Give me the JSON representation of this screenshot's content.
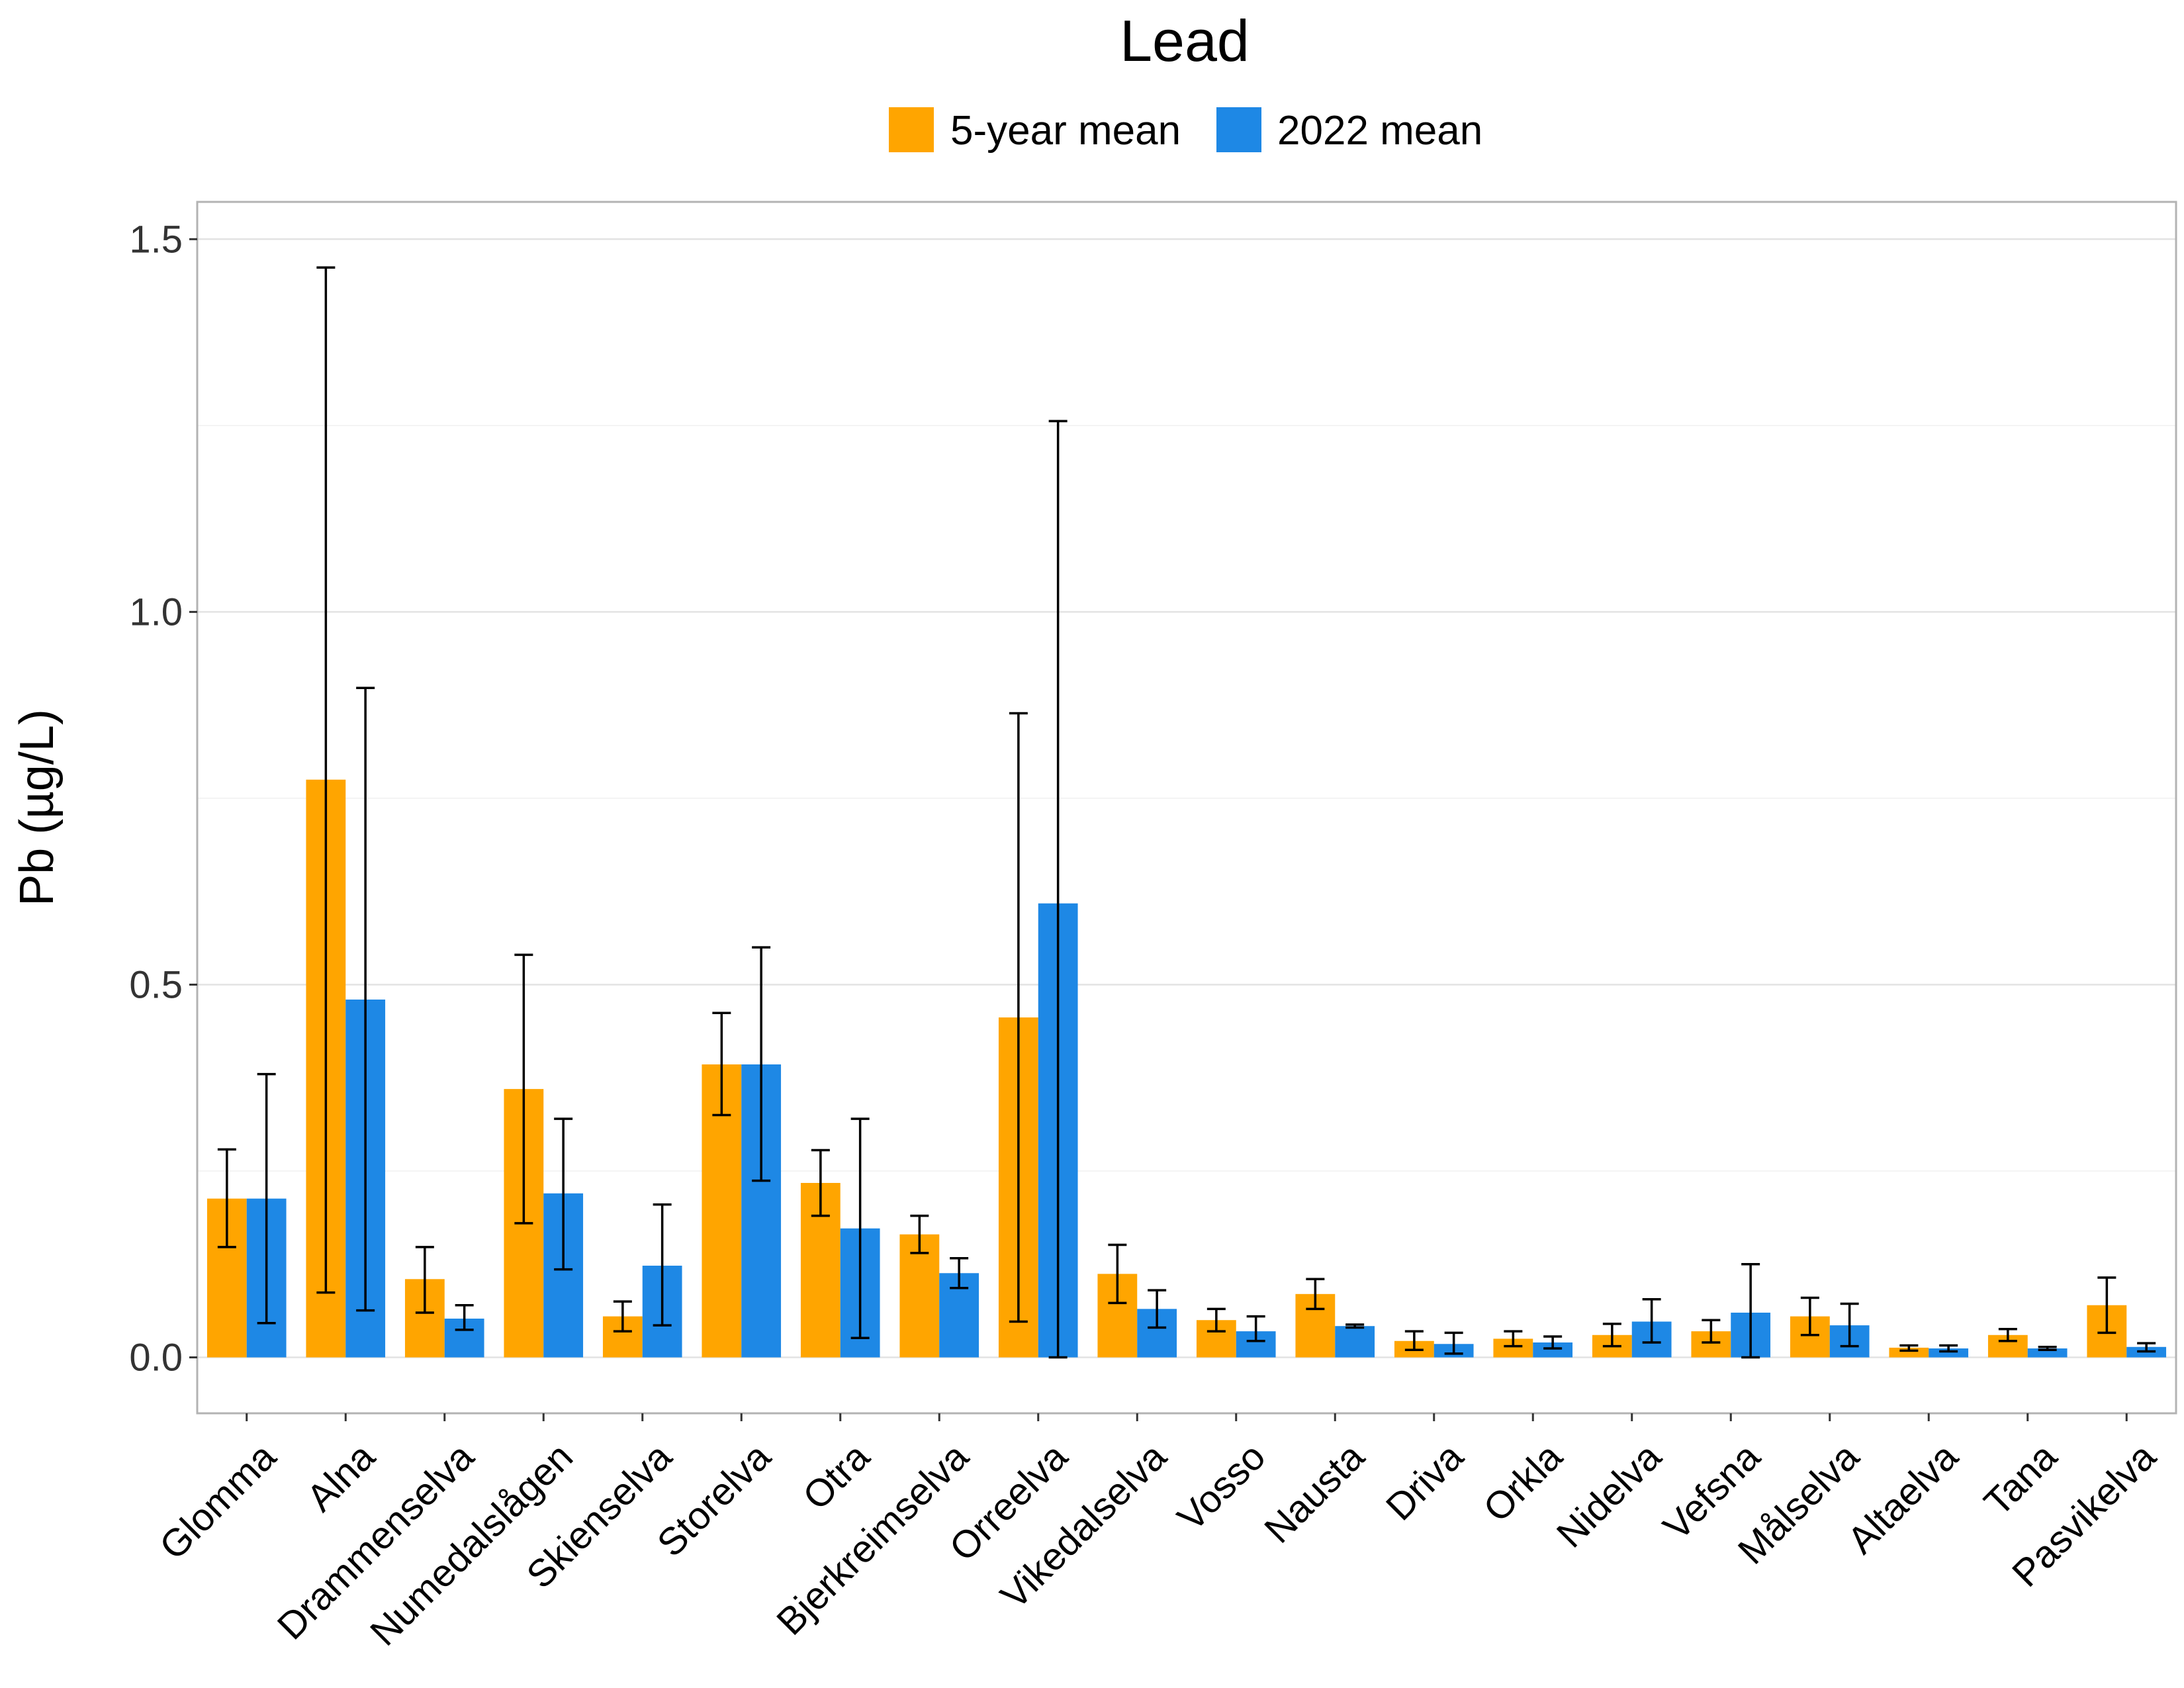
{
  "chart_data": {
    "type": "bar",
    "title": "Lead",
    "ylabel": "Pb (µg/L)",
    "xlabel": "",
    "ylim": [
      -0.075,
      1.55
    ],
    "yticks": [
      0.0,
      0.5,
      1.0,
      1.5
    ],
    "ytick_labels": [
      "0.0",
      "0.5",
      "1.0",
      "1.5"
    ],
    "grid": true,
    "legend_position": "top",
    "categories": [
      "Glomma",
      "Alna",
      "Drammenselva",
      "Numedalslågen",
      "Skienselva",
      "Storelva",
      "Otra",
      "Bjerkreimselva",
      "Orreelva",
      "Vikedalselva",
      "Vosso",
      "Nausta",
      "Driva",
      "Orkla",
      "Nidelva",
      "Vefsna",
      "Målselva",
      "Altaelva",
      "Tana",
      "Pasvikelva"
    ],
    "series": [
      {
        "name": "5-year mean",
        "color": "#FFA500",
        "values": [
          0.213,
          0.775,
          0.105,
          0.36,
          0.055,
          0.393,
          0.234,
          0.165,
          0.456,
          0.112,
          0.05,
          0.085,
          0.022,
          0.025,
          0.03,
          0.035,
          0.055,
          0.013,
          0.03,
          0.07
        ],
        "err_low": [
          0.148,
          0.087,
          0.06,
          0.18,
          0.035,
          0.325,
          0.19,
          0.14,
          0.048,
          0.073,
          0.035,
          0.065,
          0.01,
          0.015,
          0.015,
          0.02,
          0.03,
          0.009,
          0.022,
          0.033
        ],
        "err_high": [
          0.279,
          1.462,
          0.148,
          0.54,
          0.075,
          0.462,
          0.278,
          0.19,
          0.864,
          0.151,
          0.065,
          0.105,
          0.035,
          0.035,
          0.045,
          0.05,
          0.08,
          0.016,
          0.038,
          0.107
        ]
      },
      {
        "name": "2022 mean",
        "color": "#1E88E5",
        "values": [
          0.213,
          0.48,
          0.052,
          0.22,
          0.123,
          0.393,
          0.173,
          0.113,
          0.609,
          0.065,
          0.035,
          0.042,
          0.018,
          0.02,
          0.048,
          0.06,
          0.043,
          0.012,
          0.012,
          0.014
        ],
        "err_low": [
          0.046,
          0.063,
          0.037,
          0.118,
          0.043,
          0.237,
          0.026,
          0.093,
          0.0,
          0.04,
          0.022,
          0.04,
          0.005,
          0.012,
          0.02,
          0.0,
          0.015,
          0.008,
          0.01,
          0.008
        ],
        "err_high": [
          0.38,
          0.898,
          0.07,
          0.32,
          0.205,
          0.55,
          0.32,
          0.133,
          1.256,
          0.09,
          0.055,
          0.044,
          0.033,
          0.028,
          0.078,
          0.125,
          0.072,
          0.016,
          0.014,
          0.019
        ]
      }
    ]
  }
}
